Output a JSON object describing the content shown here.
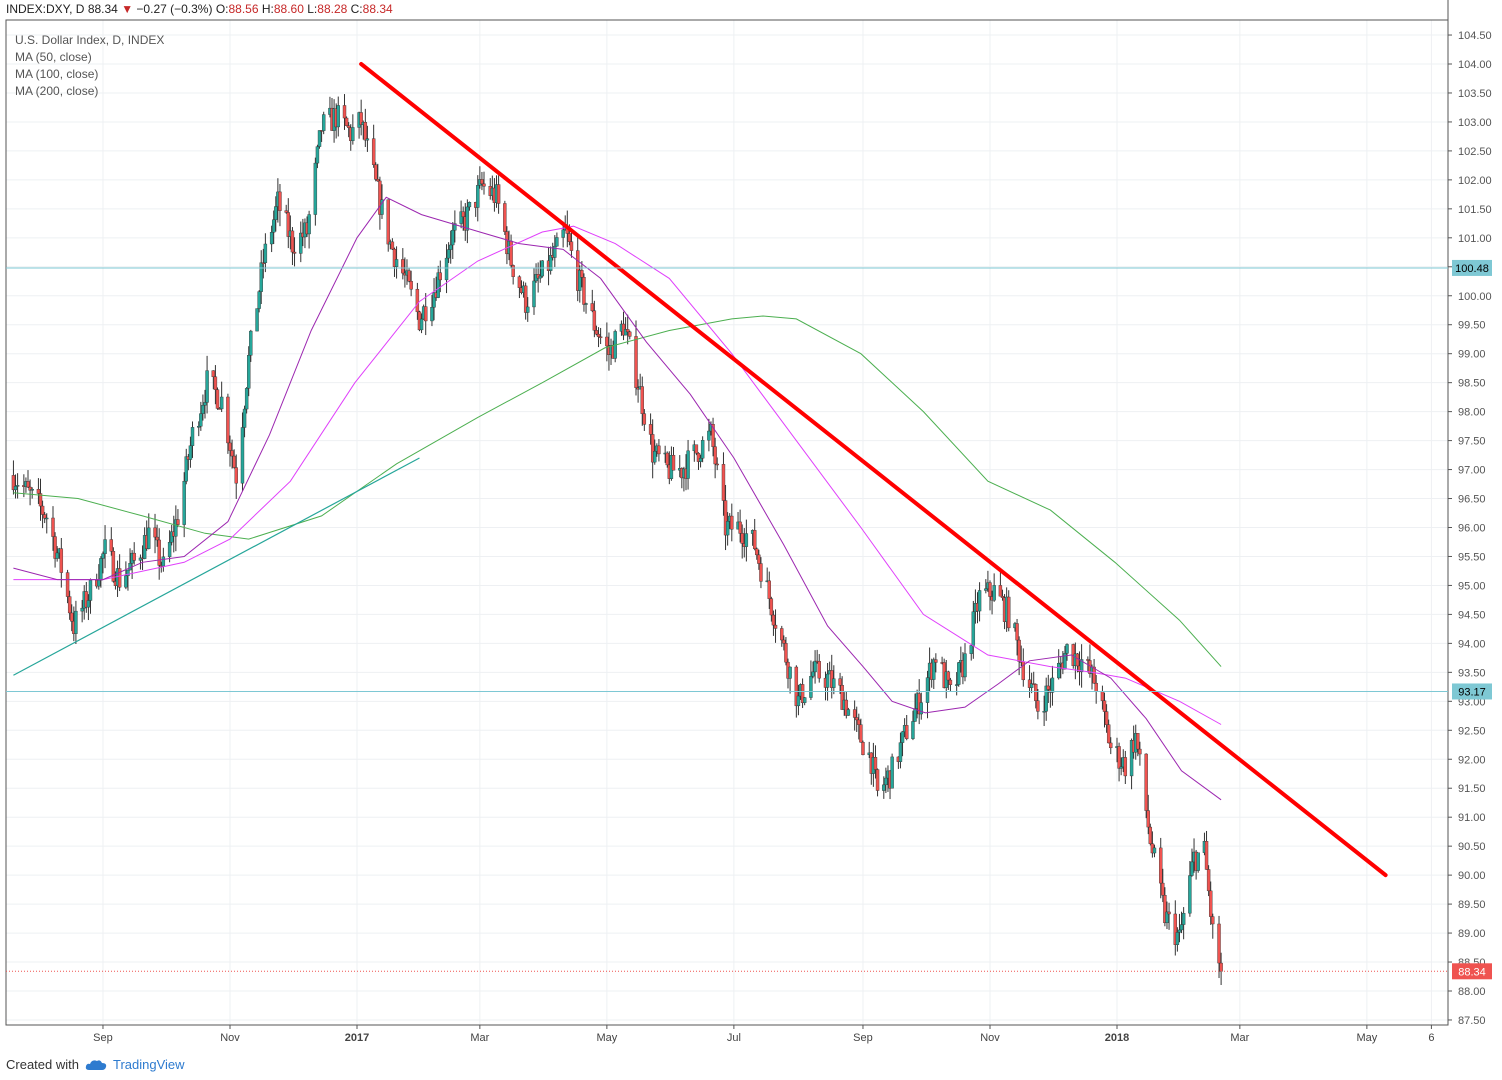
{
  "header": {
    "symbol": "INDEX:DXY, D",
    "last": "88.34",
    "change": "−0.27 (−0.3%)",
    "o_label": "O:",
    "o_val": "88.56",
    "h_label": "H:",
    "h_val": "88.60",
    "l_label": "L:",
    "l_val": "88.28",
    "c_label": "C:",
    "c_val": "88.34",
    "arrow_icon": "down-triangle-icon"
  },
  "legend": {
    "title": "U.S. Dollar Index, D, INDEX",
    "ma50": "MA (50, close)",
    "ma100": "MA (100, close)",
    "ma200": "MA (200, close)"
  },
  "footer": {
    "created_with": "Created with",
    "brand": "TradingView",
    "brand_icon": "tradingview-cloud-icon"
  },
  "colors": {
    "up": "#26a69a",
    "down": "#ef5350",
    "wick": "#333333",
    "ma50": "#9c27b0",
    "ma100": "#e040fb",
    "ma200": "#4caf50",
    "downtrend": "#ff0000",
    "uptrend": "#26a69a",
    "hline": "#7ec8d4",
    "price_marker": "#ef5350",
    "hline_marker": "#7ec8d4"
  },
  "chart_data": {
    "type": "candlestick",
    "title": "U.S. Dollar Index, D, INDEX",
    "x_ticks": [
      "Sep",
      "Nov",
      "2017",
      "Mar",
      "May",
      "Jul",
      "Sep",
      "Nov",
      "2018",
      "Mar",
      "May",
      "6"
    ],
    "x_ticks_bold": [
      "2017",
      "2018"
    ],
    "x_tick_dates": [
      "2016-09-01",
      "2016-11-01",
      "2017-01-01",
      "2017-03-01",
      "2017-05-01",
      "2017-07-01",
      "2017-09-01",
      "2017-11-01",
      "2018-01-01",
      "2018-03-01",
      "2018-05-01",
      "2018-06-01"
    ],
    "y_ticks": [
      "87.50",
      "88.00",
      "88.50",
      "89.00",
      "89.50",
      "90.00",
      "90.50",
      "91.00",
      "91.50",
      "92.00",
      "92.50",
      "93.00",
      "93.50",
      "94.00",
      "94.50",
      "95.00",
      "95.50",
      "96.00",
      "96.50",
      "97.00",
      "97.50",
      "98.00",
      "98.50",
      "99.00",
      "99.50",
      "100.00",
      "100.50",
      "101.00",
      "101.50",
      "102.00",
      "102.50",
      "103.00",
      "103.50",
      "104.00",
      "104.50"
    ],
    "ylim": [
      87.3,
      104.7
    ],
    "grid": true,
    "price_path": [
      [
        "2016-07-20",
        96.9
      ],
      [
        "2016-08-05",
        96.2
      ],
      [
        "2016-08-12",
        95.3
      ],
      [
        "2016-08-18",
        94.3
      ],
      [
        "2016-08-26",
        94.9
      ],
      [
        "2016-09-02",
        95.6
      ],
      [
        "2016-09-09",
        95.1
      ],
      [
        "2016-09-16",
        95.4
      ],
      [
        "2016-09-23",
        95.9
      ],
      [
        "2016-09-30",
        95.3
      ],
      [
        "2016-10-07",
        96.2
      ],
      [
        "2016-10-14",
        97.6
      ],
      [
        "2016-10-21",
        98.5
      ],
      [
        "2016-10-28",
        98.2
      ],
      [
        "2016-11-04",
        96.9
      ],
      [
        "2016-11-10",
        98.9
      ],
      [
        "2016-11-17",
        100.6
      ],
      [
        "2016-11-24",
        101.6
      ],
      [
        "2016-12-01",
        100.9
      ],
      [
        "2016-12-08",
        101.1
      ],
      [
        "2016-12-15",
        102.9
      ],
      [
        "2016-12-22",
        103.1
      ],
      [
        "2016-12-29",
        102.8
      ],
      [
        "2017-01-03",
        103.0
      ],
      [
        "2017-01-10",
        101.9
      ],
      [
        "2017-01-17",
        100.9
      ],
      [
        "2017-01-24",
        100.3
      ],
      [
        "2017-01-31",
        99.6
      ],
      [
        "2017-02-07",
        100.1
      ],
      [
        "2017-02-15",
        101.0
      ],
      [
        "2017-02-22",
        101.3
      ],
      [
        "2017-03-02",
        101.9
      ],
      [
        "2017-03-09",
        101.7
      ],
      [
        "2017-03-16",
        100.6
      ],
      [
        "2017-03-23",
        99.9
      ],
      [
        "2017-03-30",
        100.3
      ],
      [
        "2017-04-06",
        100.7
      ],
      [
        "2017-04-11",
        101.1
      ],
      [
        "2017-04-18",
        100.2
      ],
      [
        "2017-04-25",
        99.5
      ],
      [
        "2017-05-02",
        99.0
      ],
      [
        "2017-05-09",
        99.5
      ],
      [
        "2017-05-16",
        98.5
      ],
      [
        "2017-05-23",
        97.3
      ],
      [
        "2017-05-30",
        97.0
      ],
      [
        "2017-06-06",
        97.0
      ],
      [
        "2017-06-13",
        97.3
      ],
      [
        "2017-06-20",
        97.6
      ],
      [
        "2017-06-27",
        96.0
      ],
      [
        "2017-07-04",
        96.0
      ],
      [
        "2017-07-11",
        95.7
      ],
      [
        "2017-07-18",
        94.8
      ],
      [
        "2017-07-25",
        93.9
      ],
      [
        "2017-08-01",
        93.0
      ],
      [
        "2017-08-08",
        93.5
      ],
      [
        "2017-08-15",
        93.4
      ],
      [
        "2017-08-22",
        93.1
      ],
      [
        "2017-08-29",
        92.5
      ],
      [
        "2017-09-05",
        92.0
      ],
      [
        "2017-09-08",
        91.4
      ],
      [
        "2017-09-15",
        91.8
      ],
      [
        "2017-09-22",
        92.5
      ],
      [
        "2017-09-29",
        93.1
      ],
      [
        "2017-10-06",
        93.8
      ],
      [
        "2017-10-13",
        93.1
      ],
      [
        "2017-10-20",
        93.7
      ],
      [
        "2017-10-27",
        94.8
      ],
      [
        "2017-11-03",
        94.9
      ],
      [
        "2017-11-10",
        94.5
      ],
      [
        "2017-11-17",
        93.6
      ],
      [
        "2017-11-24",
        92.9
      ],
      [
        "2017-12-01",
        93.3
      ],
      [
        "2017-12-08",
        93.9
      ],
      [
        "2017-12-15",
        93.7
      ],
      [
        "2017-12-22",
        93.3
      ],
      [
        "2017-12-29",
        92.2
      ],
      [
        "2018-01-05",
        91.9
      ],
      [
        "2018-01-10",
        92.4
      ],
      [
        "2018-01-17",
        90.6
      ],
      [
        "2018-01-24",
        89.3
      ],
      [
        "2018-01-31",
        88.9
      ],
      [
        "2018-02-07",
        90.3
      ],
      [
        "2018-02-12",
        90.4
      ],
      [
        "2018-02-16",
        89.0
      ],
      [
        "2018-02-20",
        88.34
      ]
    ],
    "ma50": [
      [
        "2016-07-20",
        95.3
      ],
      [
        "2016-08-10",
        95.1
      ],
      [
        "2016-09-01",
        95.1
      ],
      [
        "2016-09-20",
        95.4
      ],
      [
        "2016-10-10",
        95.5
      ],
      [
        "2016-10-31",
        96.1
      ],
      [
        "2016-11-20",
        97.6
      ],
      [
        "2016-12-10",
        99.4
      ],
      [
        "2017-01-01",
        101.0
      ],
      [
        "2017-01-15",
        101.7
      ],
      [
        "2017-02-01",
        101.4
      ],
      [
        "2017-03-01",
        101.1
      ],
      [
        "2017-03-20",
        100.9
      ],
      [
        "2017-04-10",
        100.8
      ],
      [
        "2017-04-28",
        100.3
      ],
      [
        "2017-05-20",
        99.2
      ],
      [
        "2017-06-10",
        98.3
      ],
      [
        "2017-07-01",
        97.2
      ],
      [
        "2017-07-25",
        95.7
      ],
      [
        "2017-08-15",
        94.3
      ],
      [
        "2017-09-01",
        93.6
      ],
      [
        "2017-09-15",
        93.0
      ],
      [
        "2017-10-01",
        92.8
      ],
      [
        "2017-10-20",
        92.9
      ],
      [
        "2017-11-05",
        93.3
      ],
      [
        "2017-11-20",
        93.7
      ],
      [
        "2017-12-10",
        93.8
      ],
      [
        "2017-12-29",
        93.4
      ],
      [
        "2018-01-15",
        92.7
      ],
      [
        "2018-02-01",
        91.8
      ],
      [
        "2018-02-20",
        91.3
      ]
    ],
    "ma100": [
      [
        "2016-07-20",
        95.1
      ],
      [
        "2016-09-01",
        95.1
      ],
      [
        "2016-10-10",
        95.4
      ],
      [
        "2016-11-01",
        95.8
      ],
      [
        "2016-11-30",
        96.8
      ],
      [
        "2016-12-31",
        98.5
      ],
      [
        "2017-01-31",
        99.9
      ],
      [
        "2017-02-28",
        100.6
      ],
      [
        "2017-03-31",
        101.1
      ],
      [
        "2017-04-15",
        101.2
      ],
      [
        "2017-05-05",
        100.9
      ],
      [
        "2017-05-31",
        100.3
      ],
      [
        "2017-06-30",
        99.0
      ],
      [
        "2017-07-31",
        97.5
      ],
      [
        "2017-08-31",
        96.0
      ],
      [
        "2017-09-30",
        94.5
      ],
      [
        "2017-10-31",
        93.8
      ],
      [
        "2017-11-30",
        93.6
      ],
      [
        "2017-12-20",
        93.5
      ],
      [
        "2018-01-05",
        93.4
      ],
      [
        "2018-01-31",
        93.0
      ],
      [
        "2018-02-20",
        92.6
      ]
    ],
    "ma200": [
      [
        "2016-07-20",
        96.6
      ],
      [
        "2016-08-20",
        96.5
      ],
      [
        "2016-09-20",
        96.2
      ],
      [
        "2016-10-20",
        95.9
      ],
      [
        "2016-11-10",
        95.8
      ],
      [
        "2016-12-15",
        96.2
      ],
      [
        "2017-01-20",
        97.1
      ],
      [
        "2017-02-28",
        97.9
      ],
      [
        "2017-03-31",
        98.5
      ],
      [
        "2017-04-30",
        99.1
      ],
      [
        "2017-05-31",
        99.4
      ],
      [
        "2017-06-30",
        99.6
      ],
      [
        "2017-07-15",
        99.65
      ],
      [
        "2017-07-31",
        99.6
      ],
      [
        "2017-08-31",
        99.0
      ],
      [
        "2017-09-30",
        98.0
      ],
      [
        "2017-10-31",
        96.8
      ],
      [
        "2017-11-30",
        96.3
      ],
      [
        "2017-12-31",
        95.4
      ],
      [
        "2018-01-31",
        94.4
      ],
      [
        "2018-02-20",
        93.6
      ]
    ],
    "downtrend_line": [
      [
        "2017-01-03",
        104.0
      ],
      [
        "2018-05-10",
        90.0
      ]
    ],
    "uptrend_line": [
      [
        "2016-07-20",
        93.45
      ],
      [
        "2017-01-31",
        97.2
      ]
    ],
    "horizontal_levels": [
      {
        "value": 100.48,
        "label": "100.48"
      },
      {
        "value": 93.17,
        "label": "93.17"
      }
    ],
    "last_price": {
      "value": 88.34,
      "label": "88.34"
    }
  }
}
